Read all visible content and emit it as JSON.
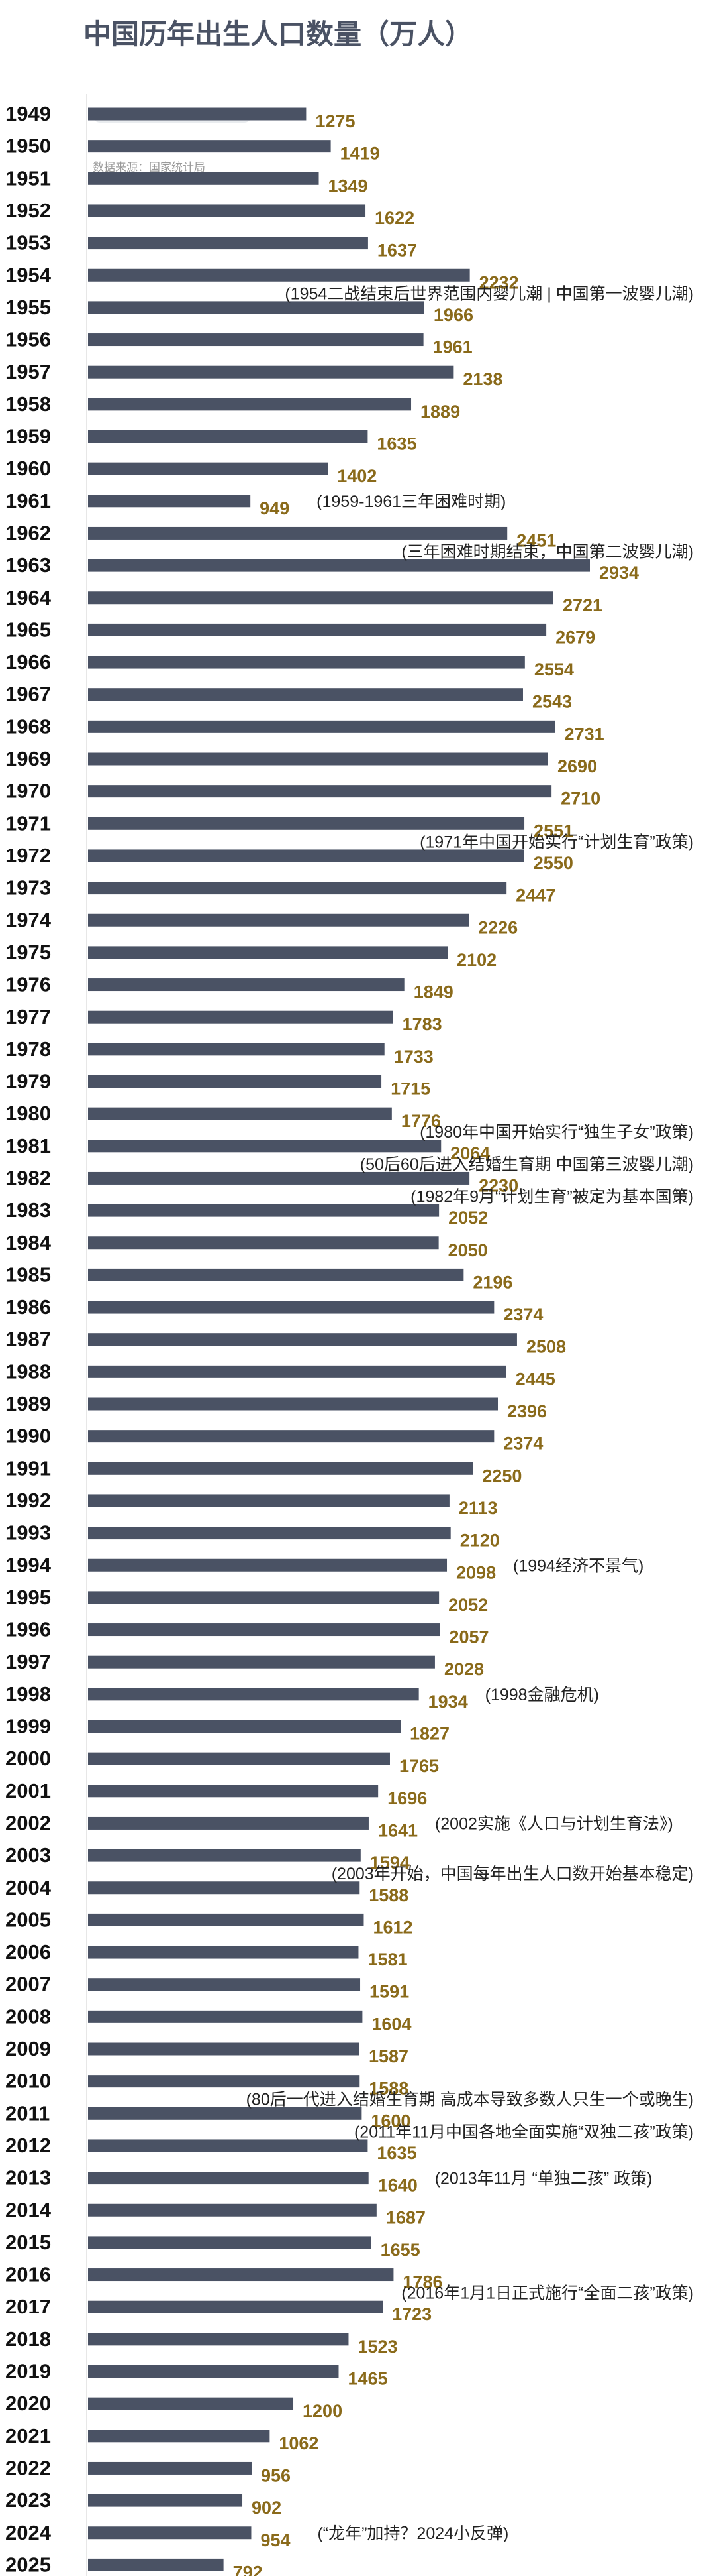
{
  "title": "中国历年出生人口数量（万人）",
  "source": "数据来源：国家统计局",
  "colors": {
    "bar": "#4a5264",
    "value": "#8a6a1a",
    "year": "#111111",
    "note": "#222222",
    "axis": "#cfcfcf"
  },
  "chart_data": {
    "type": "bar",
    "orientation": "horizontal",
    "title": "中国历年出生人口数量（万人）",
    "categories": [
      "1949",
      "1950",
      "1951",
      "1952",
      "1953",
      "1954",
      "1955",
      "1956",
      "1957",
      "1958",
      "1959",
      "1960",
      "1961",
      "1962",
      "1963",
      "1964",
      "1965",
      "1966",
      "1967",
      "1968",
      "1969",
      "1970",
      "1971",
      "1972",
      "1973",
      "1974",
      "1975",
      "1976",
      "1977",
      "1978",
      "1979",
      "1980",
      "1981",
      "1982",
      "1983",
      "1984",
      "1985",
      "1986",
      "1987",
      "1988",
      "1989",
      "1990",
      "1991",
      "1992",
      "1993",
      "1994",
      "1995",
      "1996",
      "1997",
      "1998",
      "1999",
      "2000",
      "2001",
      "2002",
      "2003",
      "2004",
      "2005",
      "2006",
      "2007",
      "2008",
      "2009",
      "2010",
      "2011",
      "2012",
      "2013",
      "2014",
      "2015",
      "2016",
      "2017",
      "2018",
      "2019",
      "2020",
      "2021",
      "2022",
      "2023",
      "2024",
      "2025"
    ],
    "values": [
      1275,
      1419,
      1349,
      1622,
      1637,
      2232,
      1966,
      1961,
      2138,
      1889,
      1635,
      1402,
      949,
      2451,
      2934,
      2721,
      2679,
      2554,
      2543,
      2731,
      2690,
      2710,
      2551,
      2550,
      2447,
      2226,
      2102,
      1849,
      1783,
      1733,
      1715,
      1776,
      2064,
      2230,
      2052,
      2050,
      2196,
      2374,
      2508,
      2445,
      2396,
      2374,
      2250,
      2113,
      2120,
      2098,
      2052,
      2057,
      2028,
      1934,
      1827,
      1765,
      1696,
      1641,
      1594,
      1588,
      1612,
      1581,
      1591,
      1604,
      1587,
      1588,
      1600,
      1635,
      1640,
      1687,
      1655,
      1786,
      1723,
      1523,
      1465,
      1200,
      1062,
      956,
      902,
      954,
      792
    ],
    "xlim": [
      0,
      3000
    ],
    "grid": false,
    "legend": "none",
    "annotations": [
      {
        "year": "1954",
        "text": "(1954二战结束后世界范围内婴儿潮 | 中国第一波婴儿潮)"
      },
      {
        "year": "1961",
        "text": "(1959-1961三年困难时期)"
      },
      {
        "year": "1962",
        "text": "(三年困难时期结束，中国第二波婴儿潮)"
      },
      {
        "year": "1971",
        "text": "(1971年中国开始实行“计划生育”政策)"
      },
      {
        "year": "1980",
        "text": "(1980年中国开始实行“独生子女”政策)"
      },
      {
        "year": "1981",
        "text": "(50后60后进入结婚生育期 中国第三波婴儿潮)"
      },
      {
        "year": "1982",
        "text": "(1982年9月“计划生育”被定为基本国策)"
      },
      {
        "year": "1994",
        "text": "(1994经济不景气)"
      },
      {
        "year": "1998",
        "text": "(1998金融危机)"
      },
      {
        "year": "2002",
        "text": "(2002实施《人口与计划生育法》)"
      },
      {
        "year": "2003",
        "text": "(2003年开始，中国每年出生人口数开始基本稳定)"
      },
      {
        "year": "2010",
        "text": "(80后一代进入结婚生育期  高成本导致多数人只生一个或晚生)"
      },
      {
        "year": "2011",
        "text": "(2011年11月中国各地全面实施“双独二孩”政策)"
      },
      {
        "year": "2013",
        "text": "(2013年11月 “单独二孩” 政策)"
      },
      {
        "year": "2016",
        "text": "(2016年1月1日正式施行“全面二孩”政策)"
      },
      {
        "year": "2024",
        "text": "(“龙年”加持？2024小反弹)"
      }
    ]
  }
}
